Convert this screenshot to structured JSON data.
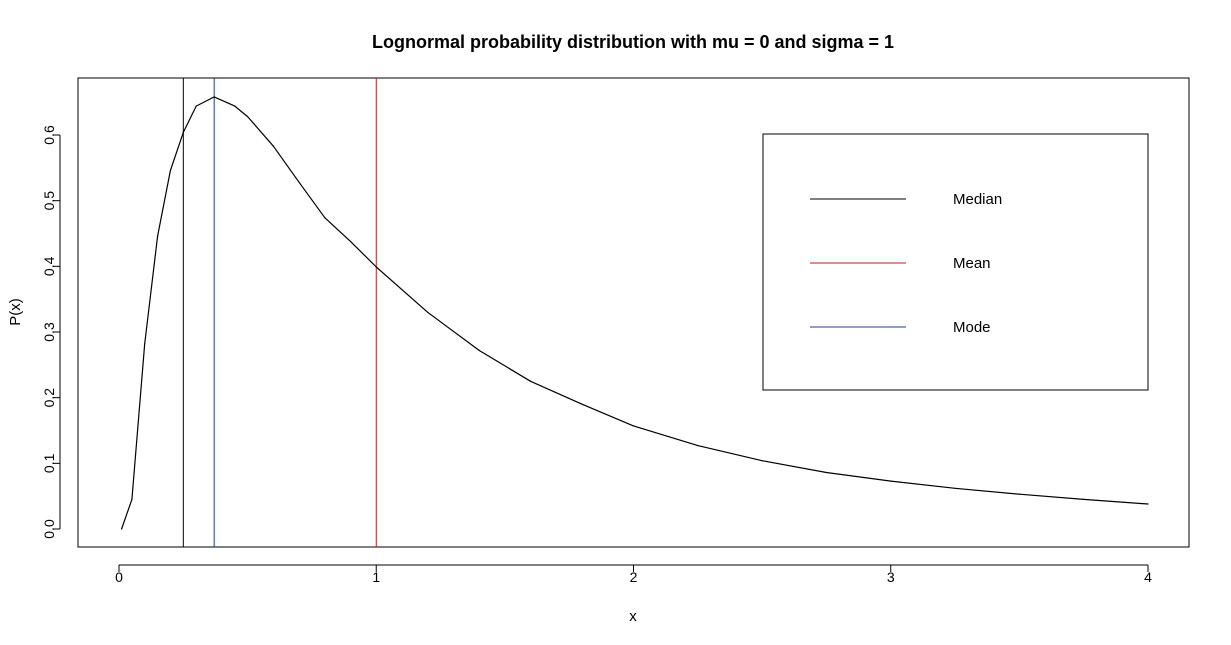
{
  "chart_data": {
    "type": "line",
    "title": "Lognormal probability distribution with mu = 0 and sigma = 1",
    "xlabel": "x",
    "ylabel": "P(x)",
    "xlim": [
      0,
      4
    ],
    "ylim": [
      0,
      0.66
    ],
    "x_ticks": [
      "0",
      "1",
      "2",
      "3",
      "4"
    ],
    "y_ticks": [
      "0.0",
      "0.1",
      "0.2",
      "0.3",
      "0.4",
      "0.5",
      "0.6"
    ],
    "grid": false,
    "legend_position": "top-right",
    "series": [
      {
        "color": "#000000",
        "x": [
          0.01,
          0.05,
          0.1,
          0.15,
          0.2,
          0.25,
          0.3,
          0.37,
          0.45,
          0.5,
          0.6,
          0.7,
          0.8,
          0.9,
          1.0,
          1.2,
          1.4,
          1.6,
          1.8,
          2.0,
          2.25,
          2.5,
          2.75,
          3.0,
          3.25,
          3.5,
          3.75,
          4.0
        ],
        "y": [
          0.0,
          0.045,
          0.282,
          0.446,
          0.546,
          0.604,
          0.644,
          0.658,
          0.644,
          0.628,
          0.583,
          0.528,
          0.474,
          0.438,
          0.399,
          0.33,
          0.272,
          0.225,
          0.19,
          0.157,
          0.127,
          0.104,
          0.086,
          0.073,
          0.062,
          0.053,
          0.045,
          0.038
        ]
      }
    ],
    "vlines": [
      {
        "label": "Median",
        "x": 0.25,
        "color": "#000000"
      },
      {
        "label": "Mean",
        "x": 1.0,
        "color": "#b22222"
      },
      {
        "label": "Mode",
        "x": 0.37,
        "color": "#1f3a93"
      }
    ],
    "legend": [
      {
        "label": "Median",
        "color": "#000000"
      },
      {
        "label": "Mean",
        "color": "#b22222"
      },
      {
        "label": "Mode",
        "color": "#1f3a93"
      }
    ]
  }
}
